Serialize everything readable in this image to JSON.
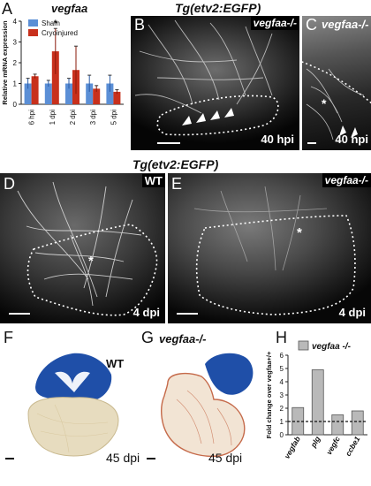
{
  "panels": {
    "A": {
      "letter": "A",
      "title": "vegfaa"
    },
    "B": {
      "letter": "B",
      "genotype": "vegfaa-/-",
      "time": "40 hpi"
    },
    "C": {
      "letter": "C",
      "genotype": "vegfaa-/-",
      "time": "40 hpi"
    },
    "D": {
      "letter": "D",
      "genotype": "WT",
      "time": "4 dpi"
    },
    "E": {
      "letter": "E",
      "genotype": "vegfaa-/-",
      "time": "4 dpi"
    },
    "F": {
      "letter": "F",
      "genotype": "WT",
      "time": "45 dpi"
    },
    "G": {
      "letter": "G",
      "genotype": "vegfaa-/-",
      "time": "45 dpi"
    },
    "H": {
      "letter": "H"
    }
  },
  "headers": {
    "top": "Tg(etv2:EGFP)",
    "middle": "Tg(etv2:EGFP)"
  },
  "asterisk": "*",
  "colors": {
    "sham": "#5b8fd6",
    "cryo": "#c8301c",
    "barH": "#b9b9b9",
    "tissue_blue": "#1f4fa8",
    "tissue_cream": "#e7dcbf"
  },
  "chart_data": [
    {
      "type": "bar",
      "title": "vegfaa",
      "ylabel": "Relative mRNA expression",
      "ylim": [
        0,
        4
      ],
      "yticks": [
        "0",
        "1",
        "2",
        "3",
        "4"
      ],
      "categories": [
        "6 hpi",
        "1 dpi",
        "2 dpi",
        "3 dpi",
        "5 dpi"
      ],
      "series": [
        {
          "name": "Sham",
          "color": "#5b8fd6",
          "values": [
            1.0,
            1.0,
            1.0,
            1.0,
            1.0
          ],
          "errors": [
            0.25,
            0.15,
            0.25,
            0.4,
            0.4
          ]
        },
        {
          "name": "Cryoinjured",
          "color": "#c8301c",
          "values": [
            1.35,
            2.55,
            1.65,
            0.75,
            0.6
          ],
          "errors": [
            0.1,
            1.1,
            1.15,
            0.15,
            0.1
          ]
        }
      ],
      "annotation": "*",
      "legend_position": "top-left"
    },
    {
      "type": "bar",
      "ylabel": "Fold change over vegfaa+/+",
      "ylim": [
        0,
        6
      ],
      "yticks": [
        "0",
        "1",
        "2",
        "3",
        "4",
        "5",
        "6"
      ],
      "categories": [
        "vegfab",
        "plg",
        "vegfc",
        "ccbe1"
      ],
      "series": [
        {
          "name": "vegfaa -/-",
          "color": "#b9b9b9",
          "values": [
            2.05,
            4.9,
            1.5,
            1.8
          ]
        }
      ],
      "reference_line": 1,
      "legend_position": "top"
    }
  ]
}
